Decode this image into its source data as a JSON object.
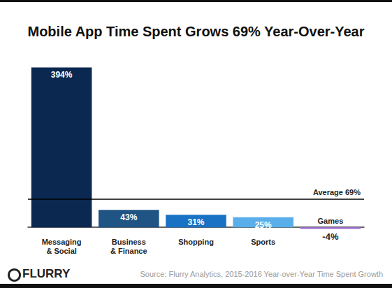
{
  "chart_data": {
    "type": "bar",
    "title": "Mobile App Time Spent Grows 69% Year-Over-Year",
    "categories": [
      "Messaging\n& Social",
      "Business\n& Finance",
      "Shopping",
      "Sports",
      "Games"
    ],
    "values": [
      394,
      43,
      31,
      25,
      -4
    ],
    "value_labels": [
      "394%",
      "43%",
      "31%",
      "25%",
      "-4%"
    ],
    "colors": [
      "#0b2850",
      "#1f5485",
      "#1a72c4",
      "#5aaeea",
      "#a070d8"
    ],
    "data_labels": true,
    "ylim": [
      -10,
      400
    ],
    "tick_labels": "x",
    "grid": false,
    "annotations": [
      {
        "text": "Average 69%",
        "y": 69
      }
    ],
    "source": "Source: Flurry Analytics, 2015-2016 Year-over-Year Time Spent Growth",
    "logo": "FLURRY"
  }
}
